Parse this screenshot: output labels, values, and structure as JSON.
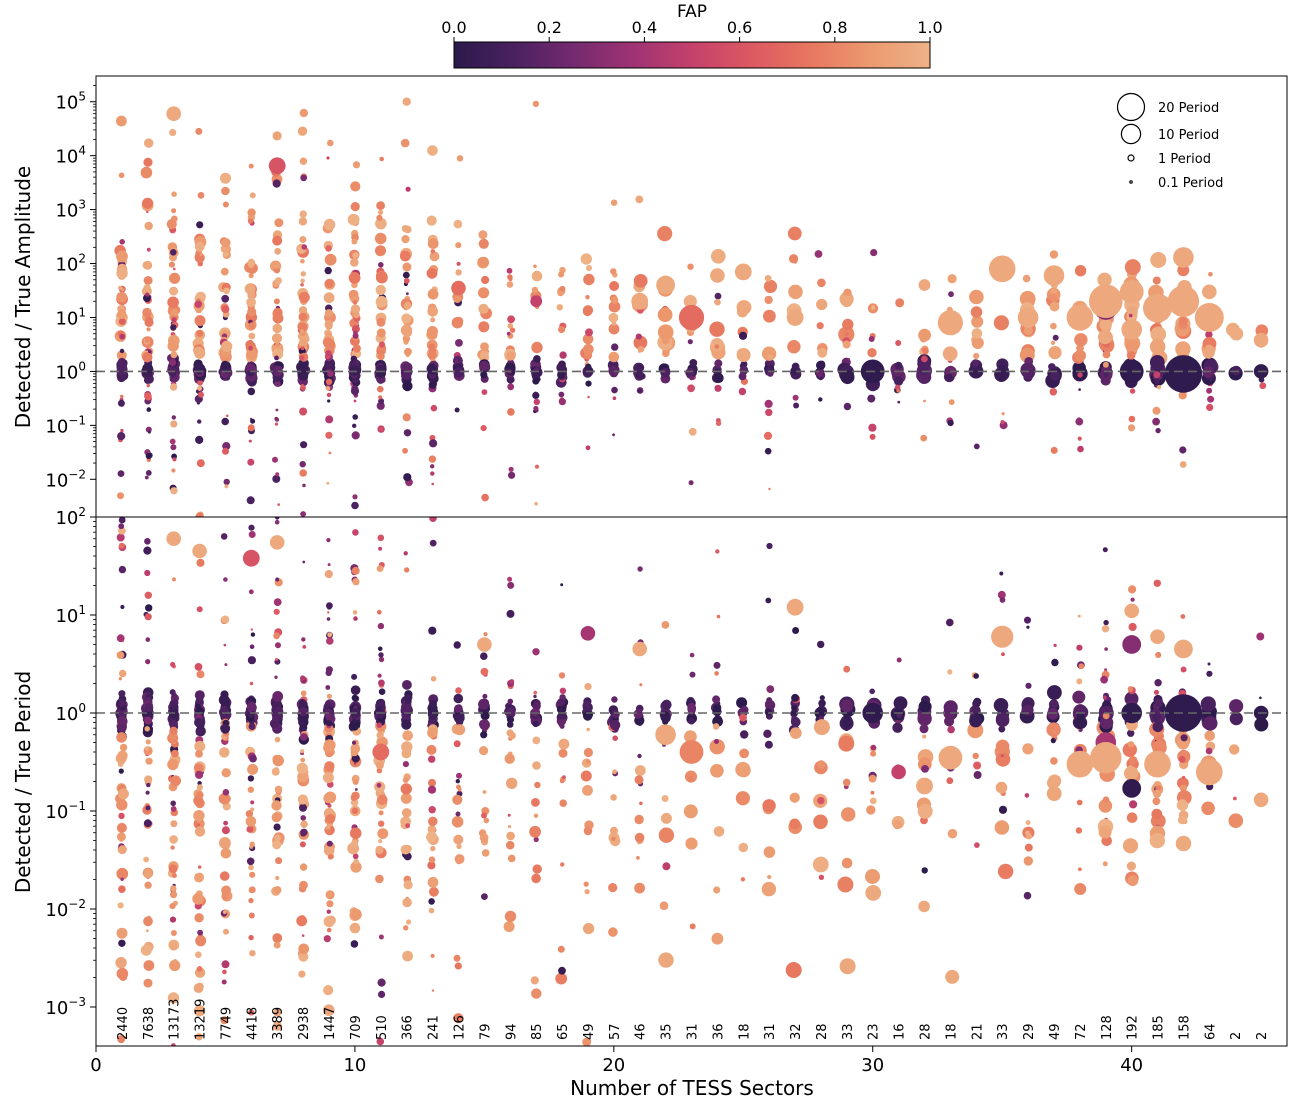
{
  "colorbar": {
    "label": "FAP",
    "range": [
      0.0,
      1.0
    ],
    "ticks": [
      "0.0",
      "0.2",
      "0.4",
      "0.6",
      "0.8",
      "1.0"
    ],
    "colormap": [
      "#2b1a4b",
      "#4a2160",
      "#742a6f",
      "#9e3373",
      "#c4416c",
      "#dc5962",
      "#e7775f",
      "#ec9a6f",
      "#eeb287"
    ]
  },
  "legend": {
    "placement": "top-right",
    "title": "",
    "entries": [
      {
        "label": "20 Period",
        "value": 20
      },
      {
        "label": "10 Period",
        "value": 10
      },
      {
        "label": "1 Period",
        "value": 1
      },
      {
        "label": "0.1 Period",
        "value": 0.1
      }
    ]
  },
  "chart_data": [
    {
      "type": "scatter",
      "title": "",
      "xlabel": "",
      "ylabel": "Detected / True Amplitude",
      "yscale": "log",
      "xlim": [
        0,
        46
      ],
      "ylim": [
        0.002,
        300000
      ],
      "yticks": [
        {
          "value": 0.01,
          "base": "10",
          "exp": "−2"
        },
        {
          "value": 0.1,
          "base": "10",
          "exp": "−1"
        },
        {
          "value": 1,
          "base": "10",
          "exp": "0"
        },
        {
          "value": 10,
          "base": "10",
          "exp": "1"
        },
        {
          "value": 100,
          "base": "10",
          "exp": "2"
        },
        {
          "value": 1000,
          "base": "10",
          "exp": "3"
        },
        {
          "value": 10000,
          "base": "10",
          "exp": "4"
        },
        {
          "value": 100000,
          "base": "10",
          "exp": "5"
        }
      ],
      "reference_line": 1,
      "grid": false,
      "series": [
        {
          "points": [
            [
              3,
              60000,
              0.95,
              3
            ],
            [
              7,
              6500,
              0.6,
              4
            ],
            [
              12,
              100000,
              0.95,
              1
            ],
            [
              23,
              10,
              0.7,
              9
            ],
            [
              35,
              80,
              0.95,
              10
            ],
            [
              37,
              60,
              0.95,
              6
            ],
            [
              39,
              15,
              0.3,
              8
            ],
            [
              39,
              20,
              0.95,
              16
            ],
            [
              40,
              30,
              0.95,
              8
            ],
            [
              42,
              130,
              0.95,
              6
            ],
            [
              42,
              0.9,
              0.02,
              20
            ],
            [
              40,
              1,
              0.02,
              8
            ],
            [
              30,
              1,
              0.02,
              8
            ],
            [
              45,
              3.8,
              0.95,
              3
            ],
            [
              45,
              1,
              0.02,
              3
            ],
            [
              41,
              15,
              0.95,
              12
            ],
            [
              42,
              20,
              0.95,
              14
            ],
            [
              43,
              10,
              0.95,
              12
            ],
            [
              25,
              70,
              0.95,
              4
            ],
            [
              22,
              40,
              0.95,
              5
            ],
            [
              21,
              20,
              0.95,
              4
            ],
            [
              24,
              60,
              0.95,
              3
            ],
            [
              33,
              8,
              0.95,
              9
            ],
            [
              38,
              10,
              0.95,
              10
            ],
            [
              14,
              35,
              0.7,
              3
            ],
            [
              17,
              20,
              0.5,
              2
            ],
            [
              27,
              10,
              0.95,
              4
            ],
            [
              36,
              10,
              0.95,
              6
            ],
            [
              32,
              40,
              0.95,
              2
            ],
            [
              29,
              20,
              0.95,
              2
            ],
            [
              40,
              6,
              0.95,
              6
            ],
            [
              43,
              30,
              0.95,
              3
            ]
          ]
        }
      ]
    },
    {
      "type": "scatter",
      "title": "",
      "xlabel": "Number of TESS Sectors",
      "ylabel": "Detected / True Period",
      "yscale": "log",
      "xlim": [
        0,
        46
      ],
      "ylim": [
        0.0004,
        100
      ],
      "xticks": [
        0,
        10,
        20,
        30,
        40
      ],
      "yticks": [
        {
          "value": 0.001,
          "base": "10",
          "exp": "−3"
        },
        {
          "value": 0.01,
          "base": "10",
          "exp": "−2"
        },
        {
          "value": 0.1,
          "base": "10",
          "exp": "−1"
        },
        {
          "value": 1,
          "base": "10",
          "exp": "0"
        },
        {
          "value": 10,
          "base": "10",
          "exp": "1"
        },
        {
          "value": 100,
          "base": "10",
          "exp": "2"
        }
      ],
      "reference_line": 1,
      "grid": false,
      "series": [
        {
          "points": [
            [
              3,
              60,
              0.95,
              3
            ],
            [
              4,
              45,
              0.95,
              3
            ],
            [
              6,
              38,
              0.6,
              4
            ],
            [
              7,
              55,
              0.95,
              3
            ],
            [
              27,
              12,
              0.95,
              4
            ],
            [
              35,
              6,
              0.95,
              7
            ],
            [
              40,
              11,
              0.95,
              3
            ],
            [
              40,
              5,
              0.3,
              5
            ],
            [
              42,
              4.5,
              0.95,
              5
            ],
            [
              41,
              6,
              0.95,
              3
            ],
            [
              23,
              0.4,
              0.8,
              8
            ],
            [
              40,
              0.17,
              0.02,
              5
            ],
            [
              42,
              1,
              0.02,
              20
            ],
            [
              40,
              1,
              0.02,
              6
            ],
            [
              30,
              1,
              0.02,
              6
            ],
            [
              45,
              1,
              0.02,
              3
            ],
            [
              45,
              0.13,
              0.95,
              3
            ],
            [
              19,
              6.5,
              0.4,
              3
            ],
            [
              15,
              5,
              0.95,
              3
            ],
            [
              21,
              4.5,
              0.95,
              3
            ],
            [
              33,
              0.35,
              0.95,
              8
            ],
            [
              38,
              0.3,
              0.95,
              10
            ],
            [
              39,
              0.5,
              0.4,
              6
            ],
            [
              43,
              0.25,
              0.95,
              10
            ],
            [
              31,
              0.25,
              0.5,
              3
            ],
            [
              32,
              0.18,
              0.95,
              4
            ],
            [
              11,
              0.4,
              0.7,
              4
            ],
            [
              22,
              0.6,
              0.95,
              6
            ],
            [
              39,
              0.35,
              0.95,
              14
            ],
            [
              41,
              0.3,
              0.95,
              10
            ]
          ]
        }
      ],
      "annotations": [
        {
          "x": 1,
          "text": "2440"
        },
        {
          "x": 2,
          "text": "7638"
        },
        {
          "x": 3,
          "text": "13173"
        },
        {
          "x": 4,
          "text": "13219"
        },
        {
          "x": 5,
          "text": "7749"
        },
        {
          "x": 6,
          "text": "4418"
        },
        {
          "x": 7,
          "text": "3389"
        },
        {
          "x": 8,
          "text": "2938"
        },
        {
          "x": 9,
          "text": "1447"
        },
        {
          "x": 10,
          "text": "709"
        },
        {
          "x": 11,
          "text": "510"
        },
        {
          "x": 12,
          "text": "366"
        },
        {
          "x": 13,
          "text": "241"
        },
        {
          "x": 14,
          "text": "126"
        },
        {
          "x": 15,
          "text": "79"
        },
        {
          "x": 16,
          "text": "94"
        },
        {
          "x": 17,
          "text": "85"
        },
        {
          "x": 18,
          "text": "65"
        },
        {
          "x": 19,
          "text": "49"
        },
        {
          "x": 20,
          "text": "57"
        },
        {
          "x": 21,
          "text": "46"
        },
        {
          "x": 22,
          "text": "35"
        },
        {
          "x": 23,
          "text": "31"
        },
        {
          "x": 24,
          "text": "36"
        },
        {
          "x": 25,
          "text": "18"
        },
        {
          "x": 26,
          "text": "31"
        },
        {
          "x": 27,
          "text": "32"
        },
        {
          "x": 28,
          "text": "28"
        },
        {
          "x": 29,
          "text": "33"
        },
        {
          "x": 30,
          "text": "23"
        },
        {
          "x": 31,
          "text": "16"
        },
        {
          "x": 32,
          "text": "28"
        },
        {
          "x": 33,
          "text": "18"
        },
        {
          "x": 34,
          "text": "21"
        },
        {
          "x": 35,
          "text": "33"
        },
        {
          "x": 36,
          "text": "29"
        },
        {
          "x": 37,
          "text": "49"
        },
        {
          "x": 38,
          "text": "72"
        },
        {
          "x": 39,
          "text": "128"
        },
        {
          "x": 40,
          "text": "192"
        },
        {
          "x": 41,
          "text": "185"
        },
        {
          "x": 42,
          "text": "158"
        },
        {
          "x": 43,
          "text": "64"
        },
        {
          "x": 44,
          "text": "2"
        },
        {
          "x": 45,
          "text": "2"
        }
      ]
    }
  ]
}
